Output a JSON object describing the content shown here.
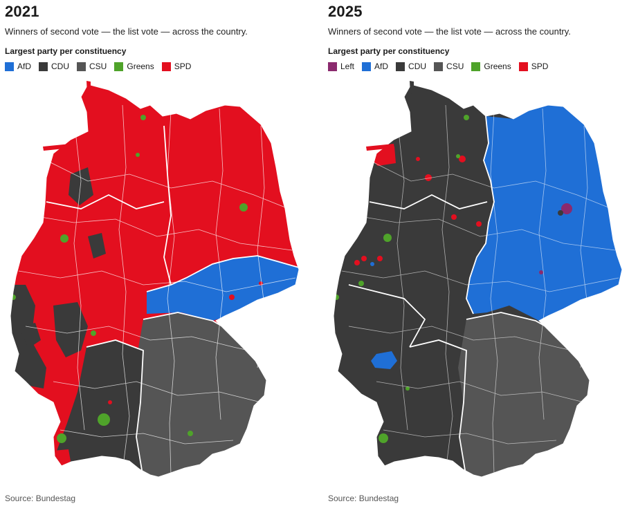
{
  "colors": {
    "Left": "#8b2a6e",
    "AfD": "#1f6fd6",
    "CDU": "#3a3a3a",
    "CSU": "#555555",
    "Greens": "#4fa32a",
    "SPD": "#e30f1f"
  },
  "panels": [
    {
      "year": "2021",
      "subtitle": "Winners of second vote — the list vote — across the country.",
      "legend_title": "Largest party per constituency",
      "legend": [
        {
          "label": "AfD",
          "color": "#1f6fd6"
        },
        {
          "label": "CDU",
          "color": "#3a3a3a"
        },
        {
          "label": "CSU",
          "color": "#555555"
        },
        {
          "label": "Greens",
          "color": "#4fa32a"
        },
        {
          "label": "SPD",
          "color": "#e30f1f"
        }
      ],
      "source": "Source: Bundestag"
    },
    {
      "year": "2025",
      "subtitle": "Winners of second vote — the list vote — across the country.",
      "legend_title": "Largest party per constituency",
      "legend": [
        {
          "label": "Left",
          "color": "#8b2a6e"
        },
        {
          "label": "AfD",
          "color": "#1f6fd6"
        },
        {
          "label": "CDU",
          "color": "#3a3a3a"
        },
        {
          "label": "CSU",
          "color": "#555555"
        },
        {
          "label": "Greens",
          "color": "#4fa32a"
        },
        {
          "label": "SPD",
          "color": "#e30f1f"
        }
      ],
      "source": "Source: Bundestag"
    }
  ]
}
